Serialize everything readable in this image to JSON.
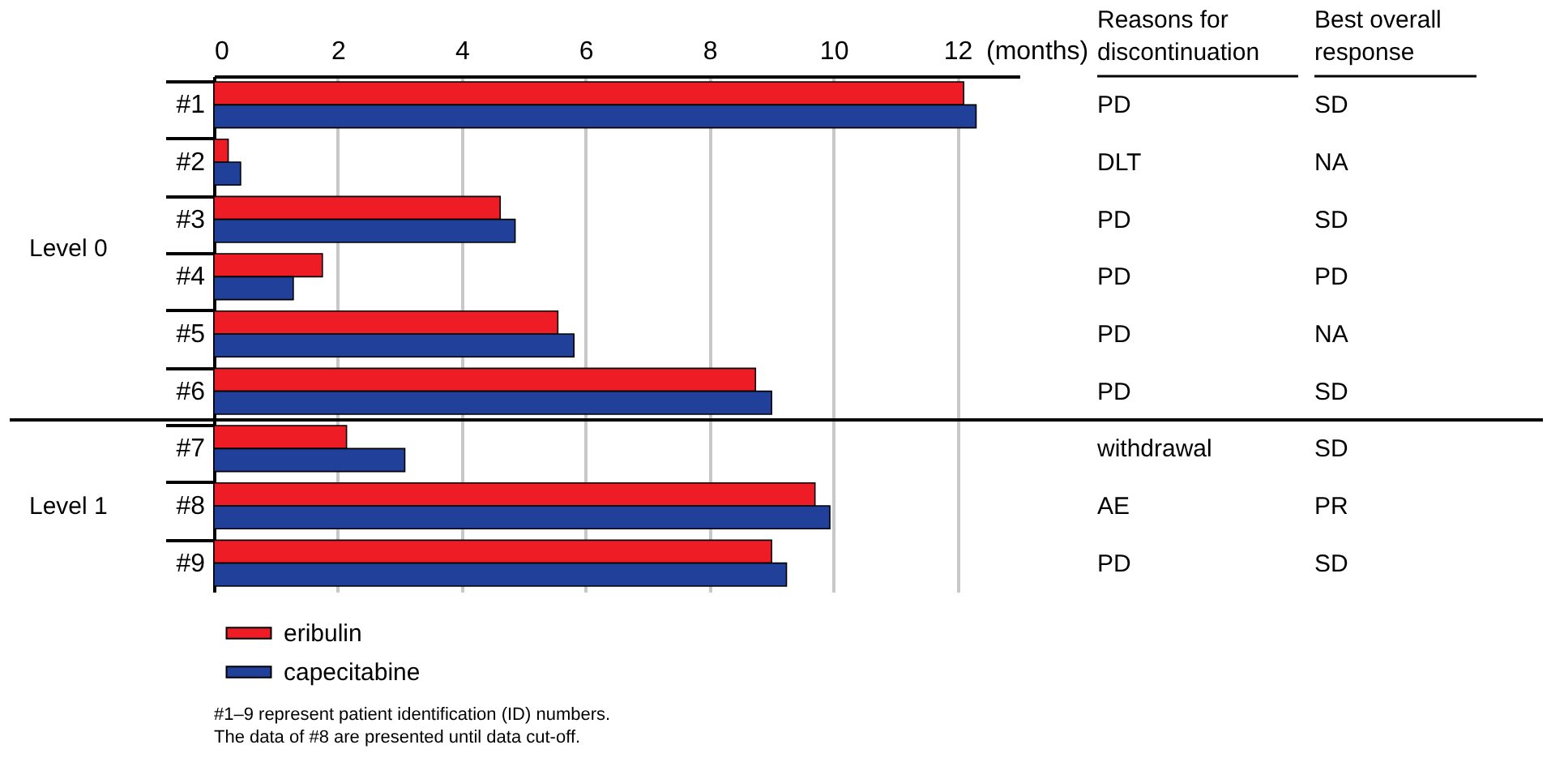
{
  "chart_data": {
    "type": "bar",
    "orientation": "horizontal",
    "xlabel": "(months)",
    "categories": [
      "#1",
      "#2",
      "#3",
      "#4",
      "#5",
      "#6",
      "#7",
      "#8",
      "#9"
    ],
    "series": [
      {
        "name": "eribulin",
        "color": "#ee1c24",
        "values": [
          12.1,
          0.23,
          4.62,
          1.75,
          5.55,
          8.74,
          2.14,
          9.7,
          9.0
        ]
      },
      {
        "name": "capecitabine",
        "color": "#21409a",
        "values": [
          12.3,
          0.43,
          4.86,
          1.28,
          5.81,
          9.0,
          3.08,
          9.94,
          9.24
        ]
      }
    ],
    "xlim": [
      0,
      13
    ],
    "xticks": [
      0,
      2,
      4,
      6,
      8,
      10,
      12
    ],
    "grid": "x",
    "legend": "bottom left",
    "ref_lines": [
      {
        "axis": "y",
        "value": "#7",
        "color": "#000000"
      }
    ],
    "annotations": [
      "Level 0",
      "Level 1",
      "Reasons for\ndiscontinuation",
      "PD",
      "DLT",
      "PD",
      "PD",
      "PD",
      "PD",
      "withdrawal",
      "AE",
      "PD",
      "Best overall\nresponse",
      "SD",
      "NA",
      "SD",
      "PD",
      "NA",
      "SD",
      "SD",
      "PR",
      "SD",
      "#1–9 represent patient identification (ID) numbers.",
      "The data of #8 are presented until data cut-off."
    ]
  }
}
